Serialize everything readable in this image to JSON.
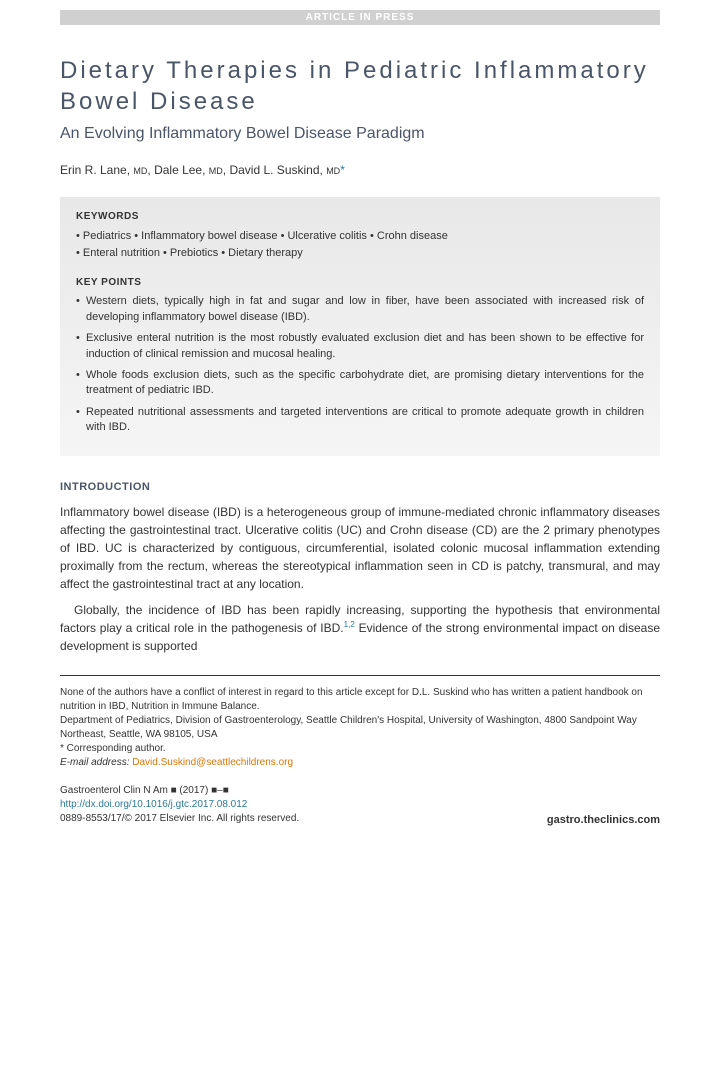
{
  "header": {
    "article_in_press": "ARTICLE IN PRESS"
  },
  "title": "Dietary Therapies in Pediatric Inflammatory Bowel Disease",
  "subtitle": "An Evolving Inflammatory Bowel Disease Paradigm",
  "authors": {
    "a1_name": "Erin R. Lane,",
    "a1_deg": "MD",
    "sep1": ", ",
    "a2_name": "Dale Lee,",
    "a2_deg": "MD",
    "sep2": ", ",
    "a3_name": "David L. Suskind,",
    "a3_deg": "MD",
    "corr": "*"
  },
  "keywords": {
    "heading": "KEYWORDS",
    "line1": "• Pediatrics • Inflammatory bowel disease • Ulcerative colitis • Crohn disease",
    "line2": "• Enteral nutrition • Prebiotics • Dietary therapy"
  },
  "keypoints": {
    "heading": "KEY POINTS",
    "items": [
      "Western diets, typically high in fat and sugar and low in fiber, have been associated with increased risk of developing inflammatory bowel disease (IBD).",
      "Exclusive enteral nutrition is the most robustly evaluated exclusion diet and has been shown to be effective for induction of clinical remission and mucosal healing.",
      "Whole foods exclusion diets, such as the specific carbohydrate diet, are promising dietary interventions for the treatment of pediatric IBD.",
      "Repeated nutritional assessments and targeted interventions are critical to promote adequate growth in children with IBD."
    ]
  },
  "introduction": {
    "heading": "INTRODUCTION",
    "p1": "Inflammatory bowel disease (IBD) is a heterogeneous group of immune-mediated chronic inflammatory diseases affecting the gastrointestinal tract. Ulcerative colitis (UC) and Crohn disease (CD) are the 2 primary phenotypes of IBD. UC is characterized by contiguous, circumferential, isolated colonic mucosal inflammation extending proximally from the rectum, whereas the stereotypical inflammation seen in CD is patchy, transmural, and may affect the gastrointestinal tract at any location.",
    "p2a": "Globally, the incidence of IBD has been rapidly increasing, supporting the hypothesis that environmental factors play a critical role in the pathogenesis of IBD.",
    "p2_ref": "1,2",
    "p2b": " Evidence of the strong environmental impact on disease development is supported"
  },
  "footer": {
    "disclosure": "None of the authors have a conflict of interest in regard to this article except for D.L. Suskind who has written a patient handbook on nutrition in IBD, Nutrition in Immune Balance.",
    "affiliation": "Department of Pediatrics, Division of Gastroenterology, Seattle Children's Hospital, University of Washington, 4800 Sandpoint Way Northeast, Seattle, WA 98105, USA",
    "corr_label": "* Corresponding author.",
    "email_label": "E-mail address: ",
    "email": "David.Suskind@seattlechildrens.org"
  },
  "journal": {
    "name": "Gastroenterol Clin N Am ■ (2017) ■–■",
    "doi": "http://dx.doi.org/10.1016/j.gtc.2017.08.012",
    "copyright": "0889-8553/17/© 2017 Elsevier Inc. All rights reserved.",
    "site": "gastro.theclinics.com"
  },
  "colors": {
    "heading_color": "#4a5568",
    "link_color": "#2b7a9b",
    "email_color": "#d97706",
    "box_bg_top": "#e8e8e8",
    "box_bg_bottom": "#f5f5f5"
  }
}
